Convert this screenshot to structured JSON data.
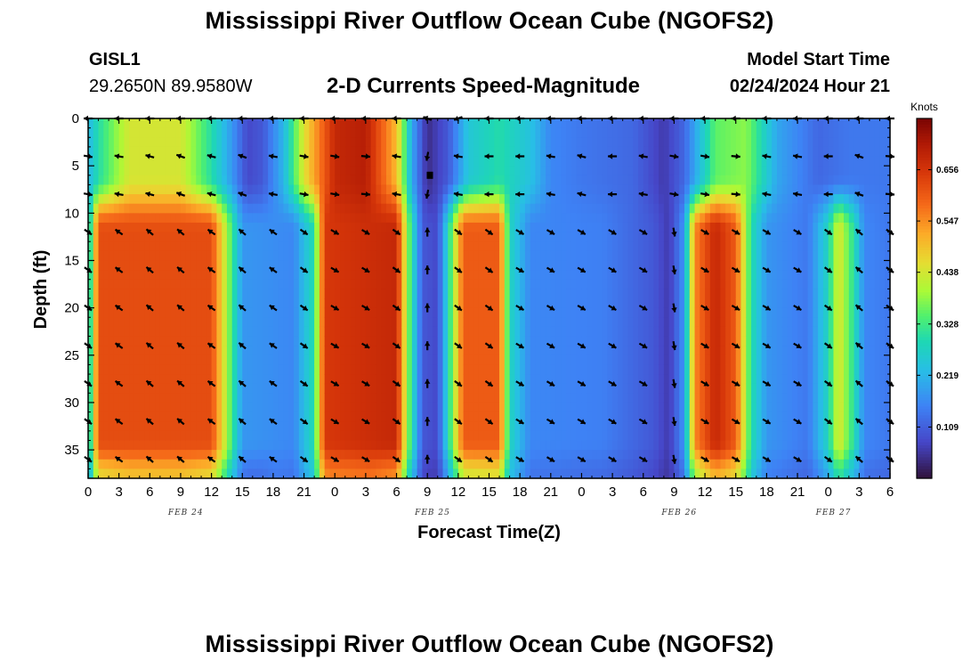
{
  "page": {
    "title_top": "Mississippi River Outflow Ocean Cube (NGOFS2)",
    "title_bottom": "Mississippi River Outflow Ocean Cube (NGOFS2)",
    "station": "GISL1",
    "coords": "29.2650N  89.9580W",
    "subtitle": "2-D Currents Speed-Magnitude",
    "model_label": "Model Start Time",
    "model_time": "02/24/2024 Hour 21"
  },
  "chart_data": {
    "type": "heatmap",
    "title": "2-D Currents Speed-Magnitude",
    "xlabel": "Forecast Time(Z)",
    "ylabel": "Depth (ft)",
    "x_hours_range": [
      0,
      78
    ],
    "y_range": [
      0,
      38
    ],
    "x_tick_labels": [
      "0",
      "3",
      "6",
      "9",
      "12",
      "15",
      "18",
      "21",
      "0",
      "3",
      "6",
      "9",
      "12",
      "15",
      "18",
      "21",
      "0",
      "3",
      "6",
      "9",
      "12",
      "15",
      "18",
      "21",
      "0",
      "3",
      "6"
    ],
    "y_ticks": [
      0,
      5,
      10,
      15,
      20,
      25,
      30,
      35
    ],
    "date_labels": [
      {
        "text": "FEB 24",
        "hour": 9.5
      },
      {
        "text": "FEB 25",
        "hour": 33.5
      },
      {
        "text": "FEB 26",
        "hour": 57.5
      },
      {
        "text": "FEB 27",
        "hour": 72.5
      }
    ],
    "colorbar": {
      "label": "Knots",
      "min": 0.0,
      "max": 0.765,
      "ticks": [
        0.109,
        0.219,
        0.328,
        0.438,
        0.547,
        0.656
      ]
    },
    "depth_rows": [
      0,
      4,
      8,
      12,
      16,
      20,
      24,
      28,
      32,
      36
    ],
    "surface_speed": [
      {
        "t": 0,
        "v": 0.22
      },
      {
        "t": 1,
        "v": 0.3
      },
      {
        "t": 4,
        "v": 0.44
      },
      {
        "t": 9,
        "v": 0.44
      },
      {
        "t": 12,
        "v": 0.3
      },
      {
        "t": 14,
        "v": 0.18
      },
      {
        "t": 15.5,
        "v": 0.08
      },
      {
        "t": 17,
        "v": 0.1
      },
      {
        "t": 19,
        "v": 0.22
      },
      {
        "t": 21,
        "v": 0.45
      },
      {
        "t": 24,
        "v": 0.68
      },
      {
        "t": 27,
        "v": 0.7
      },
      {
        "t": 30,
        "v": 0.5
      },
      {
        "t": 31.5,
        "v": 0.2
      },
      {
        "t": 33,
        "v": 0.04
      },
      {
        "t": 35,
        "v": 0.1
      },
      {
        "t": 37,
        "v": 0.25
      },
      {
        "t": 40,
        "v": 0.3
      },
      {
        "t": 43,
        "v": 0.24
      },
      {
        "t": 45,
        "v": 0.16
      },
      {
        "t": 48,
        "v": 0.14
      },
      {
        "t": 53,
        "v": 0.12
      },
      {
        "t": 56,
        "v": 0.06
      },
      {
        "t": 58,
        "v": 0.12
      },
      {
        "t": 61,
        "v": 0.35
      },
      {
        "t": 64,
        "v": 0.38
      },
      {
        "t": 67,
        "v": 0.2
      },
      {
        "t": 71,
        "v": 0.12
      },
      {
        "t": 74,
        "v": 0.14
      },
      {
        "t": 78,
        "v": 0.14
      }
    ],
    "mid_speed": [
      {
        "t": 0,
        "v": 0.22
      },
      {
        "t": 1,
        "v": 0.62
      },
      {
        "t": 12,
        "v": 0.62
      },
      {
        "t": 13.5,
        "v": 0.4
      },
      {
        "t": 15,
        "v": 0.18
      },
      {
        "t": 20,
        "v": 0.16
      },
      {
        "t": 22,
        "v": 0.3
      },
      {
        "t": 23,
        "v": 0.65
      },
      {
        "t": 30,
        "v": 0.68
      },
      {
        "t": 31,
        "v": 0.4
      },
      {
        "t": 32.5,
        "v": 0.1
      },
      {
        "t": 34,
        "v": 0.08
      },
      {
        "t": 35,
        "v": 0.28
      },
      {
        "t": 36.5,
        "v": 0.6
      },
      {
        "t": 40,
        "v": 0.6
      },
      {
        "t": 41,
        "v": 0.28
      },
      {
        "t": 43,
        "v": 0.16
      },
      {
        "t": 50,
        "v": 0.15
      },
      {
        "t": 55,
        "v": 0.1
      },
      {
        "t": 56.5,
        "v": 0.06
      },
      {
        "t": 58,
        "v": 0.18
      },
      {
        "t": 59,
        "v": 0.55
      },
      {
        "t": 61,
        "v": 0.68
      },
      {
        "t": 63,
        "v": 0.6
      },
      {
        "t": 64.5,
        "v": 0.3
      },
      {
        "t": 66,
        "v": 0.18
      },
      {
        "t": 70,
        "v": 0.14
      },
      {
        "t": 72,
        "v": 0.28
      },
      {
        "t": 73,
        "v": 0.45
      },
      {
        "t": 74.5,
        "v": 0.3
      },
      {
        "t": 75.5,
        "v": 0.16
      },
      {
        "t": 78,
        "v": 0.14
      }
    ],
    "direction_series": [
      {
        "name": "surface",
        "t": [
          0,
          3,
          6,
          9,
          12,
          15,
          18,
          21,
          24,
          27,
          30,
          33,
          36,
          39,
          42,
          45,
          48,
          51,
          54,
          57,
          60,
          63,
          66,
          69,
          72,
          75,
          78
        ],
        "deg": [
          180,
          180,
          180,
          180,
          180,
          180,
          180,
          180,
          180,
          180,
          180,
          200,
          160,
          180,
          180,
          180,
          180,
          180,
          180,
          180,
          180,
          180,
          180,
          180,
          180,
          180,
          180
        ]
      },
      {
        "name": "upper",
        "t": [
          0,
          3,
          6,
          9,
          12,
          15,
          18,
          21,
          24,
          27,
          30,
          33,
          36,
          39,
          42,
          45,
          48,
          51,
          54,
          57,
          60,
          63,
          66,
          69,
          72,
          75,
          78
        ],
        "deg": [
          10,
          190,
          195,
          200,
          195,
          200,
          190,
          10,
          10,
          5,
          190,
          100,
          190,
          180,
          180,
          190,
          195,
          180,
          190,
          10,
          10,
          5,
          190,
          190,
          180,
          200,
          5
        ]
      },
      {
        "name": "deep",
        "t": [
          0,
          3,
          6,
          9,
          12,
          15,
          18,
          21,
          24,
          27,
          30,
          33,
          36,
          39,
          42,
          45,
          48,
          51,
          54,
          57,
          60,
          63,
          66,
          69,
          72,
          75,
          78
        ],
        "deg": [
          35,
          215,
          220,
          220,
          215,
          220,
          215,
          35,
          30,
          30,
          35,
          270,
          35,
          35,
          30,
          30,
          30,
          30,
          30,
          80,
          30,
          30,
          30,
          30,
          35,
          220,
          35
        ]
      }
    ]
  }
}
